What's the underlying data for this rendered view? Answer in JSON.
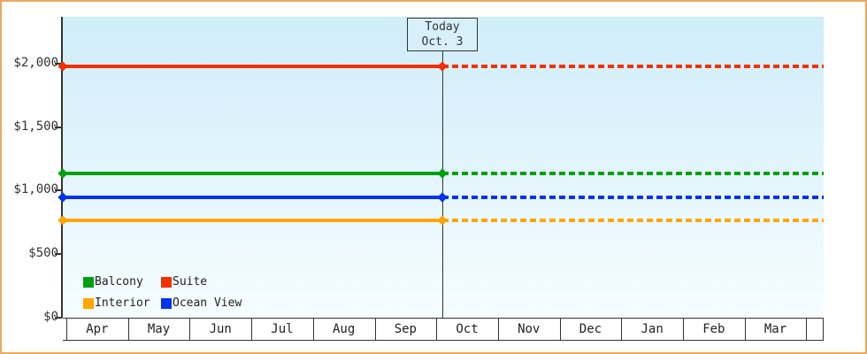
{
  "window": {
    "frame_border_color": "#eda661",
    "outer_background": "#ffffff"
  },
  "chart_data": {
    "type": "line",
    "title": "",
    "description": "Cabin price by month; solid line is past/current price, dotted line is projection after today",
    "x_categories": [
      "Apr",
      "May",
      "Jun",
      "Jul",
      "Aug",
      "Sep",
      "Oct",
      "Nov",
      "Dec",
      "Jan",
      "Feb",
      "Mar"
    ],
    "y_axis": {
      "tick_labels": [
        "$0",
        "$500",
        "$1,000",
        "$1,500",
        "$2,000"
      ],
      "tick_values": [
        0,
        500,
        1000,
        1500,
        2000
      ],
      "ylim": [
        0,
        2368
      ],
      "gridlines": false
    },
    "series": [
      {
        "name": "Suite",
        "color": "#f53000",
        "value": 1975,
        "style_before_today": "solid",
        "style_after_today": "dashed"
      },
      {
        "name": "Balcony",
        "color": "#00a010",
        "value": 1135,
        "style_before_today": "solid",
        "style_after_today": "dashed"
      },
      {
        "name": "Ocean View",
        "color": "#0033ee",
        "value": 950,
        "style_before_today": "solid",
        "style_after_today": "dashed"
      },
      {
        "name": "Interior",
        "color": "#ffa500",
        "value": 765,
        "style_before_today": "solid",
        "style_after_today": "dashed"
      }
    ],
    "today_marker": {
      "label_line1": "Today",
      "label_line2": "Oct. 3",
      "month": "Oct",
      "day": 3
    },
    "legend": {
      "position": "inside-bottom-left",
      "items": [
        {
          "label": "Balcony",
          "color": "#00a010"
        },
        {
          "label": "Suite",
          "color": "#f53000"
        },
        {
          "label": "Interior",
          "color": "#ffa500"
        },
        {
          "label": "Ocean View",
          "color": "#0033ee"
        }
      ]
    },
    "plot_background_gradient": [
      "#cfedf9",
      "#f6fdff"
    ],
    "axis_color": "#333333"
  }
}
